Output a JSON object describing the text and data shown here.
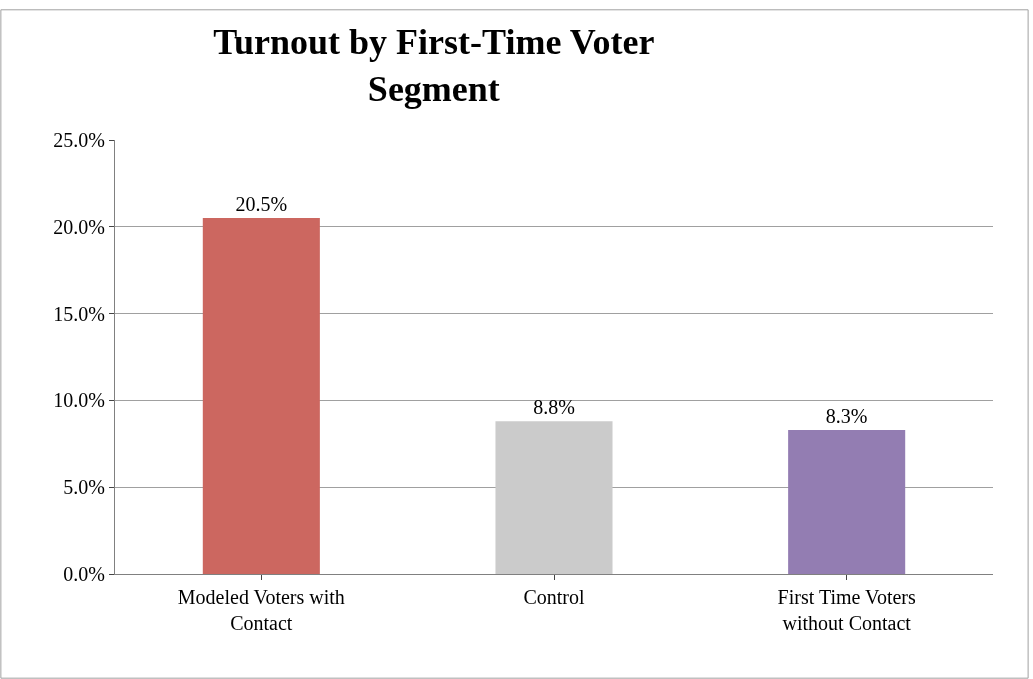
{
  "chart_data": {
    "type": "bar",
    "title": "Turnout by First-Time Voter Segment",
    "categories": [
      "Modeled Voters with Contact",
      "Control",
      "First Time Voters without Contact"
    ],
    "values": [
      20.5,
      8.8,
      8.3
    ],
    "colors": [
      "#cc6760",
      "#cbcbcb",
      "#937db2"
    ],
    "value_labels": [
      "20.5%",
      "8.8%",
      "8.3%"
    ],
    "ylim": [
      0,
      25
    ],
    "yticks": [
      {
        "value": 0,
        "label": "0.0%"
      },
      {
        "value": 5,
        "label": "5.0%"
      },
      {
        "value": 10,
        "label": "10.0%"
      },
      {
        "value": 15,
        "label": "15.0%"
      },
      {
        "value": 20,
        "label": "20.0%"
      },
      {
        "value": 25,
        "label": "25.0%"
      }
    ],
    "grid": "y"
  }
}
